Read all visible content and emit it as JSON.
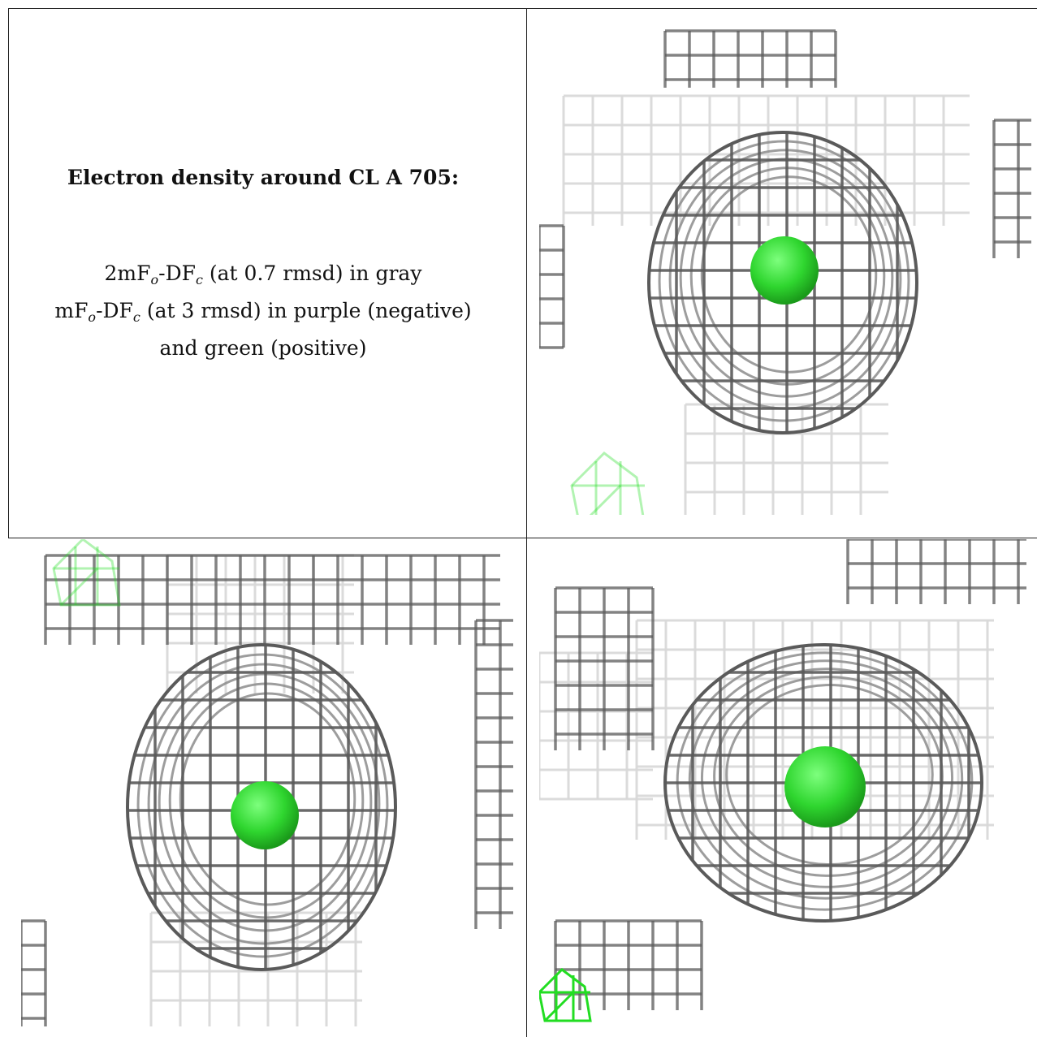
{
  "caption": {
    "title": "Electron density around CL A 705:",
    "line1_pre": "2mF",
    "line1_sub1": "o",
    "line1_mid": "-DF",
    "line1_sub2": "c",
    "line1_post": " (at 0.7 rmsd) in gray",
    "line2_pre": "mF",
    "line2_sub1": "o",
    "line2_mid": "-DF",
    "line2_sub2": "c",
    "line2_post": " (at 3 rmsd) in purple (negative)",
    "line3": "and green (positive)"
  },
  "colors": {
    "mesh_dark": "#5a5a5a",
    "mesh_mid": "#8c8c8c",
    "mesh_light": "#d8d8d8",
    "atom": "#2fd62f",
    "positive_mesh": "#22dd22"
  },
  "panels": [
    {
      "name": "view-top-right",
      "atom_icon": "chloride-sphere-icon"
    },
    {
      "name": "view-bottom-left",
      "atom_icon": "chloride-sphere-icon"
    },
    {
      "name": "view-bottom-right",
      "atom_icon": "chloride-sphere-icon"
    }
  ]
}
